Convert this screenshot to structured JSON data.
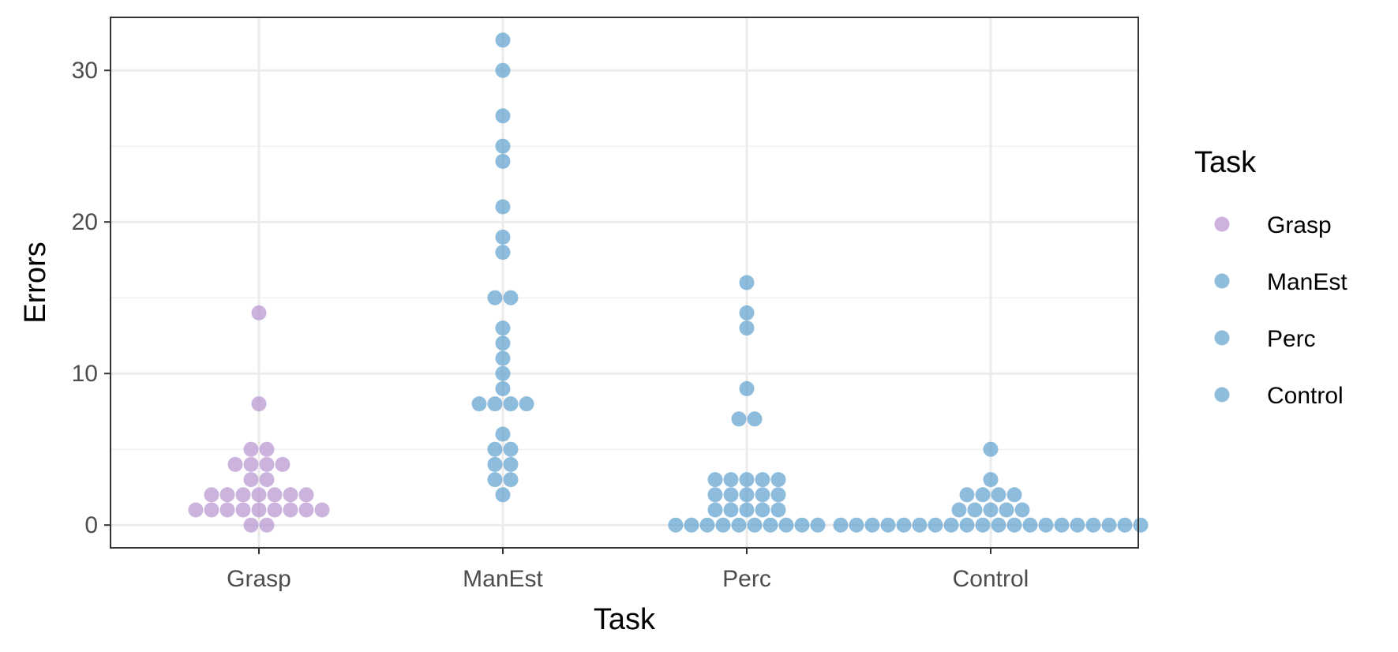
{
  "chart_data": {
    "type": "scatter",
    "subtype": "dotplot",
    "xlabel": "Task",
    "ylabel": "Errors",
    "categories": [
      "Grasp",
      "ManEst",
      "Perc",
      "Control"
    ],
    "y_ticks": [
      0,
      10,
      20,
      30
    ],
    "ylim": [
      -1.5,
      33.5
    ],
    "grid": true,
    "legend": {
      "title": "Task",
      "placement": "right",
      "entries": [
        {
          "label": "Grasp",
          "color": "#b593d0"
        },
        {
          "label": "ManEst",
          "color": "#5e9fcf"
        },
        {
          "label": "Perc",
          "color": "#5e9fcf"
        },
        {
          "label": "Control",
          "color": "#5e9fcf"
        }
      ]
    },
    "series": [
      {
        "category": "Grasp",
        "color": "#b593d0",
        "values": [
          0,
          0,
          1,
          1,
          1,
          1,
          1,
          1,
          1,
          1,
          1,
          2,
          2,
          2,
          2,
          2,
          2,
          2,
          3,
          3,
          4,
          4,
          4,
          4,
          5,
          5,
          8,
          14
        ]
      },
      {
        "category": "ManEst",
        "color": "#5e9fcf",
        "values": [
          2,
          3,
          3,
          4,
          4,
          5,
          5,
          6,
          8,
          8,
          8,
          8,
          9,
          10,
          11,
          12,
          13,
          15,
          15,
          18,
          19,
          21,
          24,
          25,
          27,
          30,
          32
        ]
      },
      {
        "category": "Perc",
        "color": "#5e9fcf",
        "values": [
          0,
          0,
          0,
          0,
          0,
          0,
          0,
          0,
          0,
          0,
          1,
          1,
          1,
          1,
          1,
          2,
          2,
          2,
          2,
          2,
          3,
          3,
          3,
          3,
          3,
          7,
          7,
          9,
          13,
          14,
          16
        ]
      },
      {
        "category": "Control",
        "color": "#5e9fcf",
        "values": [
          0,
          0,
          0,
          0,
          0,
          0,
          0,
          0,
          0,
          0,
          0,
          0,
          0,
          0,
          0,
          0,
          0,
          0,
          0,
          0,
          1,
          1,
          1,
          1,
          1,
          2,
          2,
          2,
          2,
          3,
          5
        ]
      }
    ]
  }
}
